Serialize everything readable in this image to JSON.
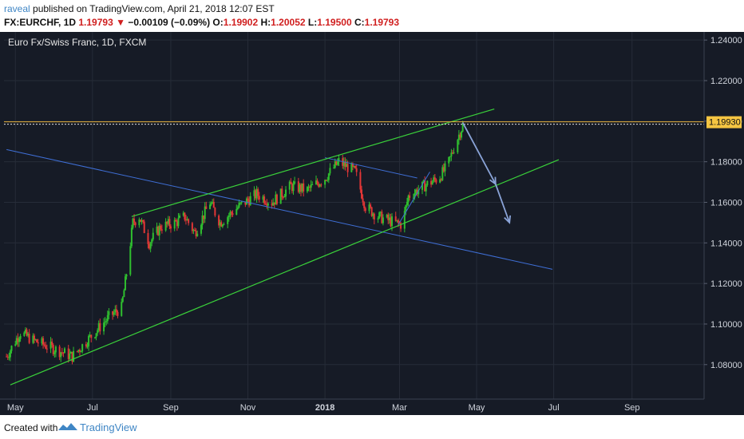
{
  "header": {
    "author": "raveal",
    "published_text": " published on TradingView.com, April 21, 2018 12:07 EST",
    "symbol": "FX:EURCHF, 1D",
    "last": "1.19793",
    "change_arrow": "▼",
    "change": "−0.00109 (−0.09%)",
    "o_label": "O:",
    "o_val": "1.19902",
    "h_label": "H:",
    "h_val": "1.20052",
    "l_label": "L:",
    "l_val": "1.19500",
    "c_label": "C:",
    "c_val": "1.19793"
  },
  "footer": {
    "created_with": "Created with",
    "brand": "TradingView"
  },
  "colors": {
    "background": "#161b26",
    "grid": "#262c38",
    "up": "#2fbf2f",
    "down": "#e23636",
    "trend_green": "#3ad13a",
    "trend_blue": "#3f6fd6",
    "arrow": "#8aa4d8",
    "level": "#e8b13a",
    "price_tag": "#f5c542"
  },
  "chart_data": {
    "type": "candlestick",
    "title": "Euro Fx/Swiss Franc, 1D, FXCM",
    "x_ticks": [
      "May",
      "Jul",
      "Sep",
      "Nov",
      "2018",
      "Mar",
      "May",
      "Jul",
      "Sep"
    ],
    "y_ticks": [
      "1.24000",
      "1.22000",
      "1.20000",
      "1.18000",
      "1.16000",
      "1.14000",
      "1.12000",
      "1.10000",
      "1.08000"
    ],
    "ylim": [
      1.063,
      1.244
    ],
    "price_label": "1.19930",
    "horizontal_level": 1.1993,
    "close_path": [
      [
        "2017-04-24",
        1.084
      ],
      [
        "2017-05-05",
        1.096
      ],
      [
        "2017-05-15",
        1.092
      ],
      [
        "2017-05-31",
        1.088
      ],
      [
        "2017-06-15",
        1.084
      ],
      [
        "2017-06-30",
        1.094
      ],
      [
        "2017-07-15",
        1.104
      ],
      [
        "2017-07-24",
        1.108
      ],
      [
        "2017-07-28",
        1.125
      ],
      [
        "2017-08-02",
        1.15
      ],
      [
        "2017-08-07",
        1.153
      ],
      [
        "2017-08-15",
        1.14
      ],
      [
        "2017-08-24",
        1.148
      ],
      [
        "2017-09-05",
        1.15
      ],
      [
        "2017-09-12",
        1.153
      ],
      [
        "2017-09-20",
        1.145
      ],
      [
        "2017-10-02",
        1.16
      ],
      [
        "2017-10-10",
        1.15
      ],
      [
        "2017-10-25",
        1.158
      ],
      [
        "2017-11-08",
        1.164
      ],
      [
        "2017-11-20",
        1.16
      ],
      [
        "2017-12-05",
        1.168
      ],
      [
        "2017-12-18",
        1.166
      ],
      [
        "2018-01-01",
        1.172
      ],
      [
        "2018-01-12",
        1.18
      ],
      [
        "2018-01-25",
        1.175
      ],
      [
        "2018-02-02",
        1.158
      ],
      [
        "2018-02-12",
        1.153
      ],
      [
        "2018-02-25",
        1.15
      ],
      [
        "2018-03-03",
        1.149
      ],
      [
        "2018-03-08",
        1.163
      ],
      [
        "2018-03-20",
        1.168
      ],
      [
        "2018-04-01",
        1.172
      ],
      [
        "2018-04-08",
        1.178
      ],
      [
        "2018-04-13",
        1.187
      ],
      [
        "2018-04-20",
        1.198
      ]
    ],
    "drawings": {
      "green_upper": [
        [
          "2017-08-01",
          1.153
        ],
        [
          "2018-05-15",
          1.206
        ]
      ],
      "green_lower": [
        [
          "2017-04-27",
          1.07
        ],
        [
          "2018-07-05",
          1.181
        ]
      ],
      "blue_long": [
        [
          "2017-04-24",
          1.186
        ],
        [
          "2018-06-30",
          1.127
        ]
      ],
      "blue_small_down": [
        [
          "2018-01-01",
          1.182
        ],
        [
          "2018-03-15",
          1.172
        ]
      ],
      "blue_small_up": [
        [
          "2018-02-28",
          1.149
        ],
        [
          "2018-03-25",
          1.175
        ]
      ],
      "arrow": [
        [
          "2018-04-20",
          1.1993
        ],
        [
          "2018-05-16",
          1.169
        ],
        [
          "2018-05-27",
          1.15
        ]
      ]
    }
  }
}
